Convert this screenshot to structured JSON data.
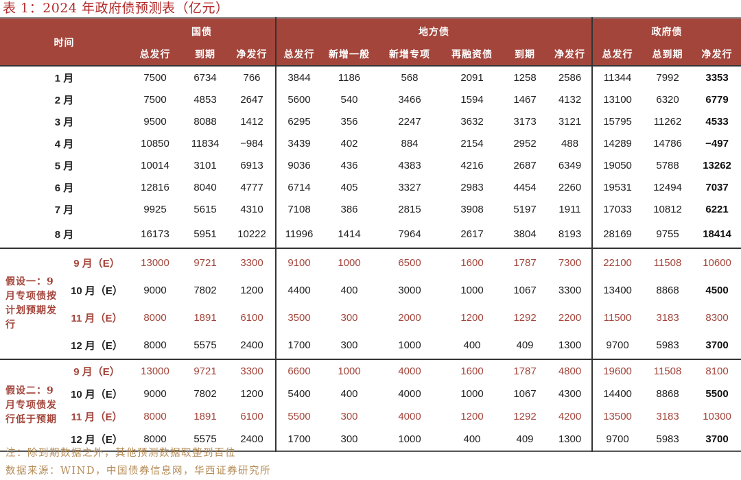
{
  "title": "表 1：2024 年政府债预测表（亿元）",
  "header": {
    "time_label": "时间",
    "groups": {
      "national": "国债",
      "local": "地方债",
      "government": "政府债"
    },
    "columns": {
      "national": [
        "总发行",
        "到期",
        "净发行"
      ],
      "local": [
        "总发行",
        "新增一般",
        "新增专项",
        "再融资债",
        "到期",
        "净发行"
      ],
      "government": [
        "总发行",
        "总到期",
        "净发行"
      ]
    }
  },
  "actual_rows": [
    {
      "month": "1 月",
      "values": [
        "7500",
        "6734",
        "766",
        "3844",
        "1186",
        "568",
        "2091",
        "1258",
        "2586",
        "11344",
        "7992",
        "3353"
      ]
    },
    {
      "month": "2 月",
      "values": [
        "7500",
        "4853",
        "2647",
        "5600",
        "540",
        "3466",
        "1594",
        "1467",
        "4132",
        "13100",
        "6320",
        "6779"
      ]
    },
    {
      "month": "3 月",
      "values": [
        "9500",
        "8088",
        "1412",
        "6295",
        "356",
        "2247",
        "3632",
        "3173",
        "3121",
        "15795",
        "11262",
        "4533"
      ]
    },
    {
      "month": "4 月",
      "values": [
        "10850",
        "11834",
        "−984",
        "3439",
        "402",
        "884",
        "2154",
        "2952",
        "488",
        "14289",
        "14786",
        "−497"
      ]
    },
    {
      "month": "5 月",
      "values": [
        "10014",
        "3101",
        "6913",
        "9036",
        "436",
        "4383",
        "4216",
        "2687",
        "6349",
        "19050",
        "5788",
        "13262"
      ]
    },
    {
      "month": "6 月",
      "values": [
        "12816",
        "8040",
        "4777",
        "6714",
        "405",
        "3327",
        "2983",
        "4454",
        "2260",
        "19531",
        "12494",
        "7037"
      ]
    },
    {
      "month": "7 月",
      "values": [
        "9925",
        "5615",
        "4310",
        "7108",
        "386",
        "2815",
        "3908",
        "5197",
        "1911",
        "17033",
        "10812",
        "6221"
      ]
    },
    {
      "month": "8 月",
      "values": [
        "16173",
        "5951",
        "10222",
        "11996",
        "1414",
        "7964",
        "2617",
        "3804",
        "8193",
        "28169",
        "9755",
        "18414"
      ]
    }
  ],
  "scenarios": [
    {
      "label": "假设一：9月专项债按计划预期发行",
      "rows": [
        {
          "month": "9 月（E）",
          "highlight": true,
          "values": [
            "13000",
            "9721",
            "3300",
            "9100",
            "1000",
            "6500",
            "1600",
            "1787",
            "7300",
            "22100",
            "11508",
            "10600"
          ]
        },
        {
          "month": "10 月（E）",
          "highlight": false,
          "values": [
            "9000",
            "7802",
            "1200",
            "4400",
            "400",
            "3000",
            "1000",
            "1067",
            "3300",
            "13400",
            "8868",
            "4500"
          ]
        },
        {
          "month": "11 月（E）",
          "highlight": true,
          "values": [
            "8000",
            "1891",
            "6100",
            "3500",
            "300",
            "2000",
            "1200",
            "1292",
            "2200",
            "11500",
            "3183",
            "8300"
          ]
        },
        {
          "month": "12 月（E）",
          "highlight": false,
          "values": [
            "8000",
            "5575",
            "2400",
            "1700",
            "300",
            "1000",
            "400",
            "409",
            "1300",
            "9700",
            "5983",
            "3700"
          ]
        }
      ]
    },
    {
      "label": "假设二：9月专项债发行低于预期",
      "rows": [
        {
          "month": "9 月（E）",
          "highlight": true,
          "values": [
            "13000",
            "9721",
            "3300",
            "6600",
            "1000",
            "4000",
            "1600",
            "1787",
            "4800",
            "19600",
            "11508",
            "8100"
          ]
        },
        {
          "month": "10 月（E）",
          "highlight": false,
          "values": [
            "9000",
            "7802",
            "1200",
            "5400",
            "400",
            "4000",
            "1000",
            "1067",
            "4300",
            "14400",
            "8868",
            "5500"
          ]
        },
        {
          "month": "11 月（E）",
          "highlight": true,
          "values": [
            "8000",
            "1891",
            "6100",
            "5500",
            "300",
            "4000",
            "1200",
            "1292",
            "4200",
            "13500",
            "3183",
            "10300"
          ]
        },
        {
          "month": "12 月（E）",
          "highlight": false,
          "values": [
            "8000",
            "5575",
            "2400",
            "1700",
            "300",
            "1000",
            "400",
            "409",
            "1300",
            "9700",
            "5983",
            "3700"
          ]
        }
      ]
    }
  ],
  "notes": [
    "注：除到期数据之外，其他预测数据取整到百位",
    "数据来源：WIND，中国债券信息网，华西证券研究所"
  ],
  "colors": {
    "header_bg": "#a3453b",
    "highlight_text": "#a3453b",
    "title_text": "#b22b2b",
    "notes_text": "#b48a55"
  },
  "chart_data": {
    "type": "table",
    "title": "表 1：2024 年政府债预测表（亿元）",
    "columns": [
      "时间",
      "国债-总发行",
      "国债-到期",
      "国债-净发行",
      "地方债-总发行",
      "地方债-新增一般",
      "地方债-新增专项",
      "地方债-再融资债",
      "地方债-到期",
      "地方债-净发行",
      "政府债-总发行",
      "政府债-总到期",
      "政府债-净发行"
    ],
    "rows": [
      [
        "1 月",
        7500,
        6734,
        766,
        3844,
        1186,
        568,
        2091,
        1258,
        2586,
        11344,
        7992,
        3353
      ],
      [
        "2 月",
        7500,
        4853,
        2647,
        5600,
        540,
        3466,
        1594,
        1467,
        4132,
        13100,
        6320,
        6779
      ],
      [
        "3 月",
        9500,
        8088,
        1412,
        6295,
        356,
        2247,
        3632,
        3173,
        3121,
        15795,
        11262,
        4533
      ],
      [
        "4 月",
        10850,
        11834,
        -984,
        3439,
        402,
        884,
        2154,
        2952,
        488,
        14289,
        14786,
        -497
      ],
      [
        "5 月",
        10014,
        3101,
        6913,
        9036,
        436,
        4383,
        4216,
        2687,
        6349,
        19050,
        5788,
        13262
      ],
      [
        "6 月",
        12816,
        8040,
        4777,
        6714,
        405,
        3327,
        2983,
        4454,
        2260,
        19531,
        12494,
        7037
      ],
      [
        "7 月",
        9925,
        5615,
        4310,
        7108,
        386,
        2815,
        3908,
        5197,
        1911,
        17033,
        10812,
        6221
      ],
      [
        "8 月",
        16173,
        5951,
        10222,
        11996,
        1414,
        7964,
        2617,
        3804,
        8193,
        28169,
        9755,
        18414
      ],
      [
        "假设一 9 月（E）",
        13000,
        9721,
        3300,
        9100,
        1000,
        6500,
        1600,
        1787,
        7300,
        22100,
        11508,
        10600
      ],
      [
        "假设一 10 月（E）",
        9000,
        7802,
        1200,
        4400,
        400,
        3000,
        1000,
        1067,
        3300,
        13400,
        8868,
        4500
      ],
      [
        "假设一 11 月（E）",
        8000,
        1891,
        6100,
        3500,
        300,
        2000,
        1200,
        1292,
        2200,
        11500,
        3183,
        8300
      ],
      [
        "假设一 12 月（E）",
        8000,
        5575,
        2400,
        1700,
        300,
        1000,
        400,
        409,
        1300,
        9700,
        5983,
        3700
      ],
      [
        "假设二 9 月（E）",
        13000,
        9721,
        3300,
        6600,
        1000,
        4000,
        1600,
        1787,
        4800,
        19600,
        11508,
        8100
      ],
      [
        "假设二 10 月（E）",
        9000,
        7802,
        1200,
        5400,
        400,
        4000,
        1000,
        1067,
        4300,
        14400,
        8868,
        5500
      ],
      [
        "假设二 11 月（E）",
        8000,
        1891,
        6100,
        5500,
        300,
        4000,
        1200,
        1292,
        4200,
        13500,
        3183,
        10300
      ],
      [
        "假设二 12 月（E）",
        8000,
        5575,
        2400,
        1700,
        300,
        1000,
        400,
        409,
        1300,
        9700,
        5983,
        3700
      ]
    ]
  }
}
